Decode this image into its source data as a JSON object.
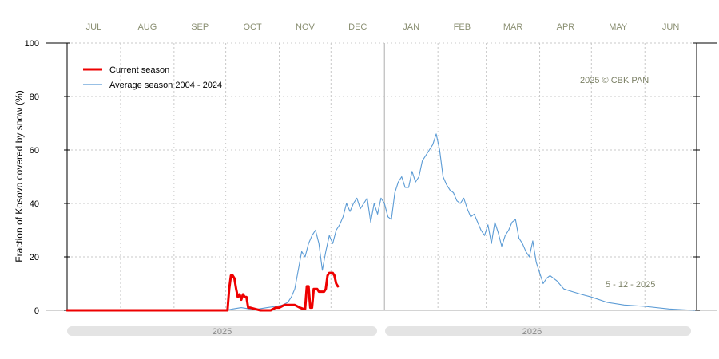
{
  "chart_data": {
    "type": "line",
    "ylabel": "Fraction of  Kosovo  covered by snow (%)",
    "ylim": [
      0,
      100
    ],
    "yticks": [
      0,
      20,
      40,
      60,
      80,
      100
    ],
    "x_start": "2025-07-01",
    "x_end": "2026-06-30",
    "months": [
      "JUL",
      "AUG",
      "SEP",
      "OCT",
      "NOV",
      "DEC",
      "JAN",
      "FEB",
      "MAR",
      "APR",
      "MAY",
      "JUN"
    ],
    "grid": true,
    "legend_position": "top-left",
    "colors": {
      "current": "#ee0000",
      "average": "#5b9bd5",
      "grid": "#c8c8c8",
      "divider": "#bbbbbb",
      "year_bar": "#e4e4e4"
    },
    "years": [
      "2025",
      "2026"
    ],
    "annotations": {
      "copyright": "2025  © CBK PAN",
      "date": "5 - 12 - 2025"
    },
    "series": [
      {
        "name": "Current season",
        "x": [
          "2025-07-01",
          "2025-08-01",
          "2025-09-01",
          "2025-09-30",
          "2025-10-02",
          "2025-10-03",
          "2025-10-04",
          "2025-10-05",
          "2025-10-06",
          "2025-10-07",
          "2025-10-08",
          "2025-10-09",
          "2025-10-10",
          "2025-10-11",
          "2025-10-12",
          "2025-10-13",
          "2025-10-14",
          "2025-10-15",
          "2025-10-18",
          "2025-10-21",
          "2025-10-24",
          "2025-10-27",
          "2025-10-30",
          "2025-11-01",
          "2025-11-04",
          "2025-11-07",
          "2025-11-08",
          "2025-11-10",
          "2025-11-13",
          "2025-11-15",
          "2025-11-16",
          "2025-11-17",
          "2025-11-18",
          "2025-11-19",
          "2025-11-20",
          "2025-11-21",
          "2025-11-22",
          "2025-11-23",
          "2025-11-24",
          "2025-11-25",
          "2025-11-26",
          "2025-11-27",
          "2025-11-28",
          "2025-11-29",
          "2025-11-30",
          "2025-12-01",
          "2025-12-02",
          "2025-12-03",
          "2025-12-04",
          "2025-12-05"
        ],
        "values": [
          0,
          0,
          0,
          0,
          0,
          8,
          13,
          13,
          12,
          8,
          5,
          6,
          4,
          6,
          5,
          5,
          1,
          1,
          0.5,
          0,
          0,
          0,
          1,
          1,
          2,
          2,
          2,
          2,
          1,
          0.5,
          0.5,
          9,
          9,
          1,
          1,
          8,
          8,
          8,
          7,
          7,
          7,
          7,
          8,
          13,
          14,
          14,
          14,
          13,
          10,
          9
        ]
      },
      {
        "name": "Average season 2004 - 2024",
        "x": [
          "2025-07-01",
          "2025-08-01",
          "2025-09-01",
          "2025-10-01",
          "2025-10-05",
          "2025-10-10",
          "2025-10-15",
          "2025-10-20",
          "2025-10-25",
          "2025-10-30",
          "2025-11-03",
          "2025-11-06",
          "2025-11-08",
          "2025-11-10",
          "2025-11-12",
          "2025-11-14",
          "2025-11-16",
          "2025-11-18",
          "2025-11-20",
          "2025-11-22",
          "2025-11-24",
          "2025-11-26",
          "2025-11-28",
          "2025-11-30",
          "2025-12-02",
          "2025-12-04",
          "2025-12-06",
          "2025-12-08",
          "2025-12-10",
          "2025-12-12",
          "2025-12-14",
          "2025-12-16",
          "2025-12-18",
          "2025-12-20",
          "2025-12-22",
          "2025-12-24",
          "2025-12-26",
          "2025-12-28",
          "2025-12-30",
          "2026-01-01",
          "2026-01-03",
          "2026-01-05",
          "2026-01-07",
          "2026-01-09",
          "2026-01-11",
          "2026-01-13",
          "2026-01-15",
          "2026-01-17",
          "2026-01-19",
          "2026-01-21",
          "2026-01-23",
          "2026-01-25",
          "2026-01-27",
          "2026-01-29",
          "2026-01-31",
          "2026-02-02",
          "2026-02-04",
          "2026-02-06",
          "2026-02-08",
          "2026-02-10",
          "2026-02-12",
          "2026-02-14",
          "2026-02-16",
          "2026-02-18",
          "2026-02-20",
          "2026-02-22",
          "2026-02-24",
          "2026-02-26",
          "2026-02-28",
          "2026-03-02",
          "2026-03-04",
          "2026-03-06",
          "2026-03-08",
          "2026-03-10",
          "2026-03-12",
          "2026-03-14",
          "2026-03-16",
          "2026-03-18",
          "2026-03-20",
          "2026-03-22",
          "2026-03-24",
          "2026-03-26",
          "2026-03-28",
          "2026-03-30",
          "2026-04-01",
          "2026-04-03",
          "2026-04-05",
          "2026-04-07",
          "2026-04-09",
          "2026-04-11",
          "2026-04-15",
          "2026-04-20",
          "2026-04-25",
          "2026-05-01",
          "2026-05-10",
          "2026-05-20",
          "2026-06-01",
          "2026-06-15",
          "2026-06-30"
        ],
        "values": [
          0,
          0,
          0,
          0,
          0.5,
          1,
          0.5,
          0.5,
          1,
          1.5,
          2,
          3,
          5,
          8,
          15,
          22,
          20,
          25,
          28,
          30,
          25,
          15,
          22,
          28,
          25,
          30,
          32,
          35,
          40,
          37,
          40,
          42,
          38,
          40,
          42,
          33,
          40,
          36,
          42,
          40,
          35,
          34,
          44,
          48,
          50,
          46,
          46,
          52,
          48,
          50,
          56,
          58,
          60,
          62,
          66,
          60,
          50,
          47,
          45,
          44,
          41,
          40,
          42,
          38,
          35,
          36,
          33,
          30,
          28,
          32,
          25,
          33,
          29,
          24,
          28,
          30,
          33,
          34,
          27,
          25,
          22,
          20,
          26,
          18,
          14,
          10,
          12,
          13,
          12,
          11,
          8,
          7,
          6,
          5,
          3,
          2,
          1.5,
          0.5,
          0
        ]
      }
    ]
  }
}
